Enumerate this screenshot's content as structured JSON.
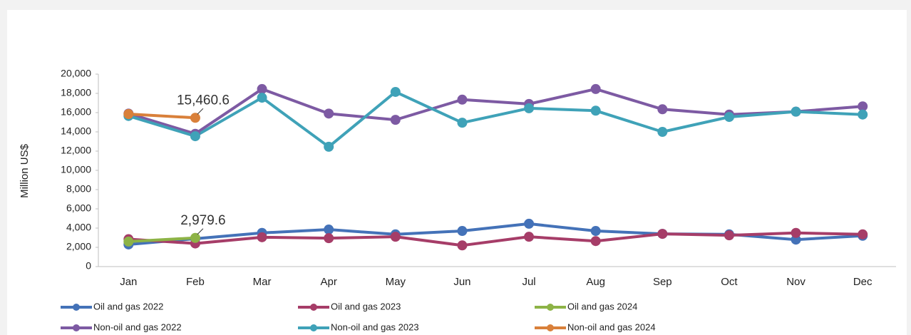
{
  "chart_data": {
    "type": "line",
    "y_label": "Million US$",
    "categories": [
      "Jan",
      "Feb",
      "Mar",
      "Apr",
      "May",
      "Jun",
      "Jul",
      "Aug",
      "Sep",
      "Oct",
      "Nov",
      "Dec"
    ],
    "ylim": [
      0,
      20000
    ],
    "yticks": [
      0,
      {
        "value": 2000,
        "label": "2,000"
      },
      {
        "value": 4000,
        "label": "4,000"
      },
      {
        "value": 6000,
        "label": "6,000"
      },
      {
        "value": 8000,
        "label": "8,000"
      },
      {
        "value": 10000,
        "label": "10,000"
      },
      {
        "value": 12000,
        "label": "12,000"
      },
      {
        "value": 14000,
        "label": "14,000"
      },
      {
        "value": 16000,
        "label": "16,000"
      },
      {
        "value": 18000,
        "label": "18,000"
      },
      {
        "value": 20000,
        "label": "20,000"
      }
    ],
    "grid": false,
    "legend": "bottom",
    "series": [
      {
        "name": "Oil and gas 2022",
        "color": "#4472b8",
        "values": [
          2300,
          2900,
          3500,
          3850,
          3350,
          3700,
          4450,
          3700,
          3400,
          3350,
          2800,
          3200
        ]
      },
      {
        "name": "Oil and gas 2023",
        "color": "#a63d68",
        "values": [
          2850,
          2400,
          3050,
          2950,
          3100,
          2200,
          3100,
          2650,
          3400,
          3250,
          3500,
          3350
        ]
      },
      {
        "name": "Oil and gas 2024",
        "color": "#8db346",
        "values": [
          2600,
          2979.6,
          null,
          null,
          null,
          null,
          null,
          null,
          null,
          null,
          null,
          null
        ],
        "value_labels": [
          null,
          "2,979.6",
          null,
          null,
          null,
          null,
          null,
          null,
          null,
          null,
          null,
          null
        ]
      },
      {
        "name": "Non-oil and gas 2022",
        "color": "#7d5aa3",
        "values": [
          15900,
          13800,
          18450,
          15900,
          15250,
          17350,
          16900,
          18450,
          16350,
          15800,
          16100,
          16650
        ]
      },
      {
        "name": "Non-oil and gas 2023",
        "color": "#3fa2b8",
        "values": [
          15650,
          13550,
          17550,
          12450,
          18150,
          14950,
          16450,
          16200,
          14000,
          15550,
          16100,
          15800
        ]
      },
      {
        "name": "Non-oil and gas 2024",
        "color": "#d9803a",
        "values": [
          15850,
          15460.6,
          null,
          null,
          null,
          null,
          null,
          null,
          null,
          null,
          null,
          null
        ],
        "value_labels": [
          null,
          "15,460.6",
          null,
          null,
          null,
          null,
          null,
          null,
          null,
          null,
          null,
          null
        ]
      }
    ]
  }
}
